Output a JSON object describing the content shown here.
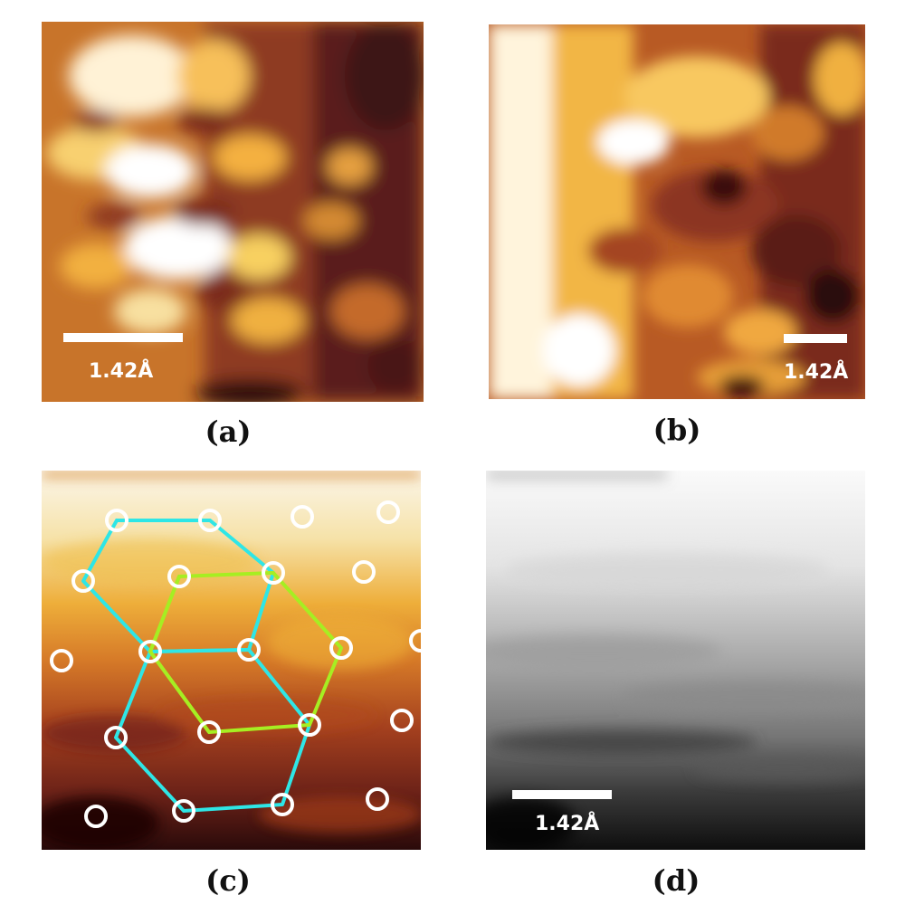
{
  "panels": {
    "a": {
      "label": "(a)",
      "scalebar": "1.42Å"
    },
    "b": {
      "label": "(b)",
      "scalebar": "1.42Å"
    },
    "c": {
      "label": "(c)"
    },
    "d": {
      "label": "(d)",
      "scalebar": "1.42Å"
    }
  },
  "colors": {
    "hex_lattice_line": "#2ee6e6",
    "inner_lattice_line": "#a6ee22",
    "atom_marker": "#ffffff"
  }
}
